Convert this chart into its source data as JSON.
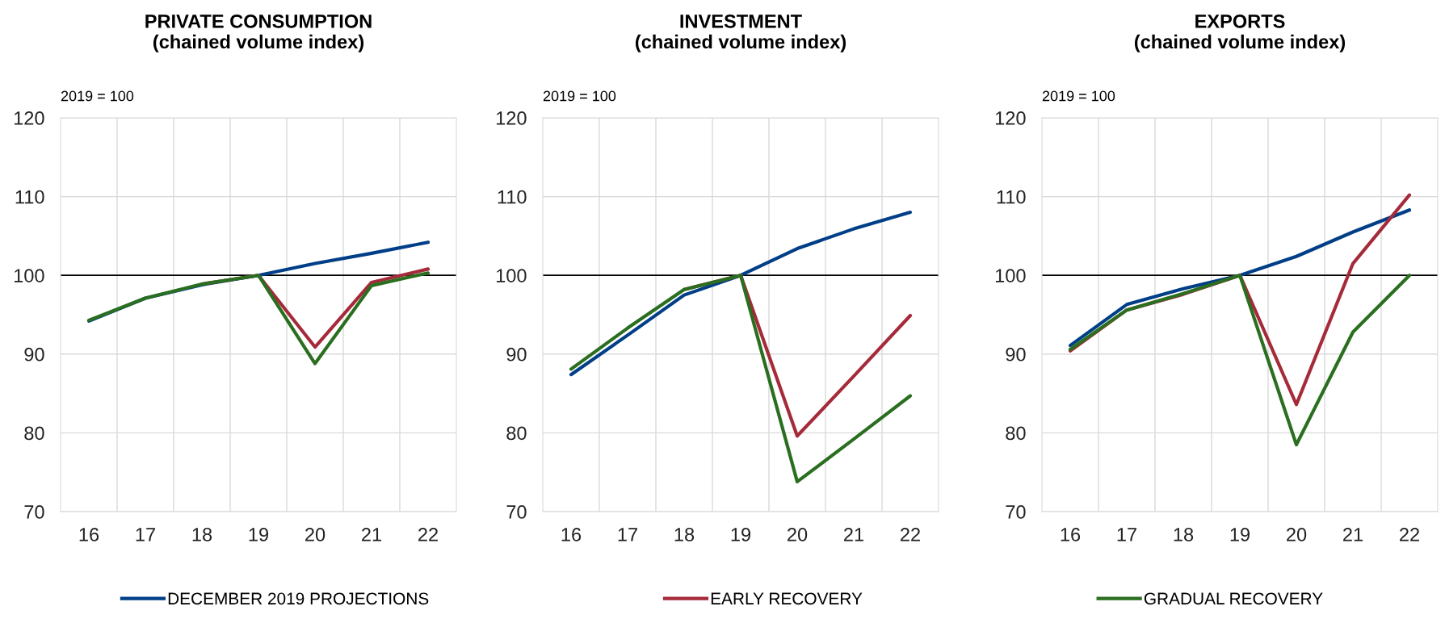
{
  "chart_data": [
    {
      "type": "line",
      "title": "PRIVATE CONSUMPTION\n(chained volume index)",
      "annotations": [
        "2019 = 100"
      ],
      "categories": [
        "16",
        "17",
        "18",
        "19",
        "20",
        "21",
        "22"
      ],
      "ylim": [
        70,
        120
      ],
      "yticks": [
        70,
        80,
        90,
        100,
        110,
        120
      ],
      "grid": true,
      "legend": "bottom",
      "line_style": "solid",
      "ref_lines": [
        {
          "axis": "y",
          "value": 100,
          "color": "#000000"
        }
      ],
      "series": [
        {
          "name": "DECEMBER 2019 PROJECTIONS",
          "color": "#003f87",
          "values": [
            94.2,
            97.1,
            98.8,
            100,
            101.5,
            102.8,
            104.2
          ]
        },
        {
          "name": "EARLY RECOVERY",
          "color": "#a52a3a",
          "values": [
            null,
            null,
            98.9,
            100,
            90.9,
            99.1,
            100.8
          ]
        },
        {
          "name": "GRADUAL RECOVERY",
          "color": "#2a6e1f",
          "values": [
            94.3,
            97.1,
            98.9,
            100,
            88.8,
            98.7,
            100.3
          ]
        }
      ]
    },
    {
      "type": "line",
      "title": "INVESTMENT\n(chained volume index)",
      "annotations": [
        "2019 = 100"
      ],
      "categories": [
        "16",
        "17",
        "18",
        "19",
        "20",
        "21",
        "22"
      ],
      "ylim": [
        70,
        120
      ],
      "yticks": [
        70,
        80,
        90,
        100,
        110,
        120
      ],
      "grid": true,
      "line_style": "solid",
      "ref_lines": [
        {
          "axis": "y",
          "value": 100,
          "color": "#000000"
        }
      ],
      "series": [
        {
          "color": "#003f87",
          "values": [
            87.4,
            92.4,
            97.5,
            100,
            103.4,
            105.9,
            108.0
          ]
        },
        {
          "color": "#a52a3a",
          "values": [
            null,
            null,
            98.2,
            100,
            79.6,
            87.2,
            94.9
          ]
        },
        {
          "color": "#2a6e1f",
          "values": [
            88.1,
            93.3,
            98.2,
            100,
            73.8,
            79.2,
            84.7
          ]
        }
      ]
    },
    {
      "type": "line",
      "title": "EXPORTS\n(chained volume index)",
      "annotations": [
        "2019 = 100"
      ],
      "categories": [
        "16",
        "17",
        "18",
        "19",
        "20",
        "21",
        "22"
      ],
      "ylim": [
        70,
        120
      ],
      "yticks": [
        70,
        80,
        90,
        100,
        110,
        120
      ],
      "grid": true,
      "line_style": "solid",
      "ref_lines": [
        {
          "axis": "y",
          "value": 100,
          "color": "#000000"
        }
      ],
      "series": [
        {
          "color": "#003f87",
          "values": [
            91.1,
            96.3,
            98.3,
            100,
            102.4,
            105.5,
            108.3
          ]
        },
        {
          "color": "#a52a3a",
          "values": [
            90.4,
            95.6,
            97.6,
            100,
            83.6,
            101.5,
            110.2
          ]
        },
        {
          "color": "#2a6e1f",
          "values": [
            90.6,
            95.6,
            97.7,
            100,
            78.5,
            92.8,
            100
          ]
        }
      ]
    }
  ]
}
